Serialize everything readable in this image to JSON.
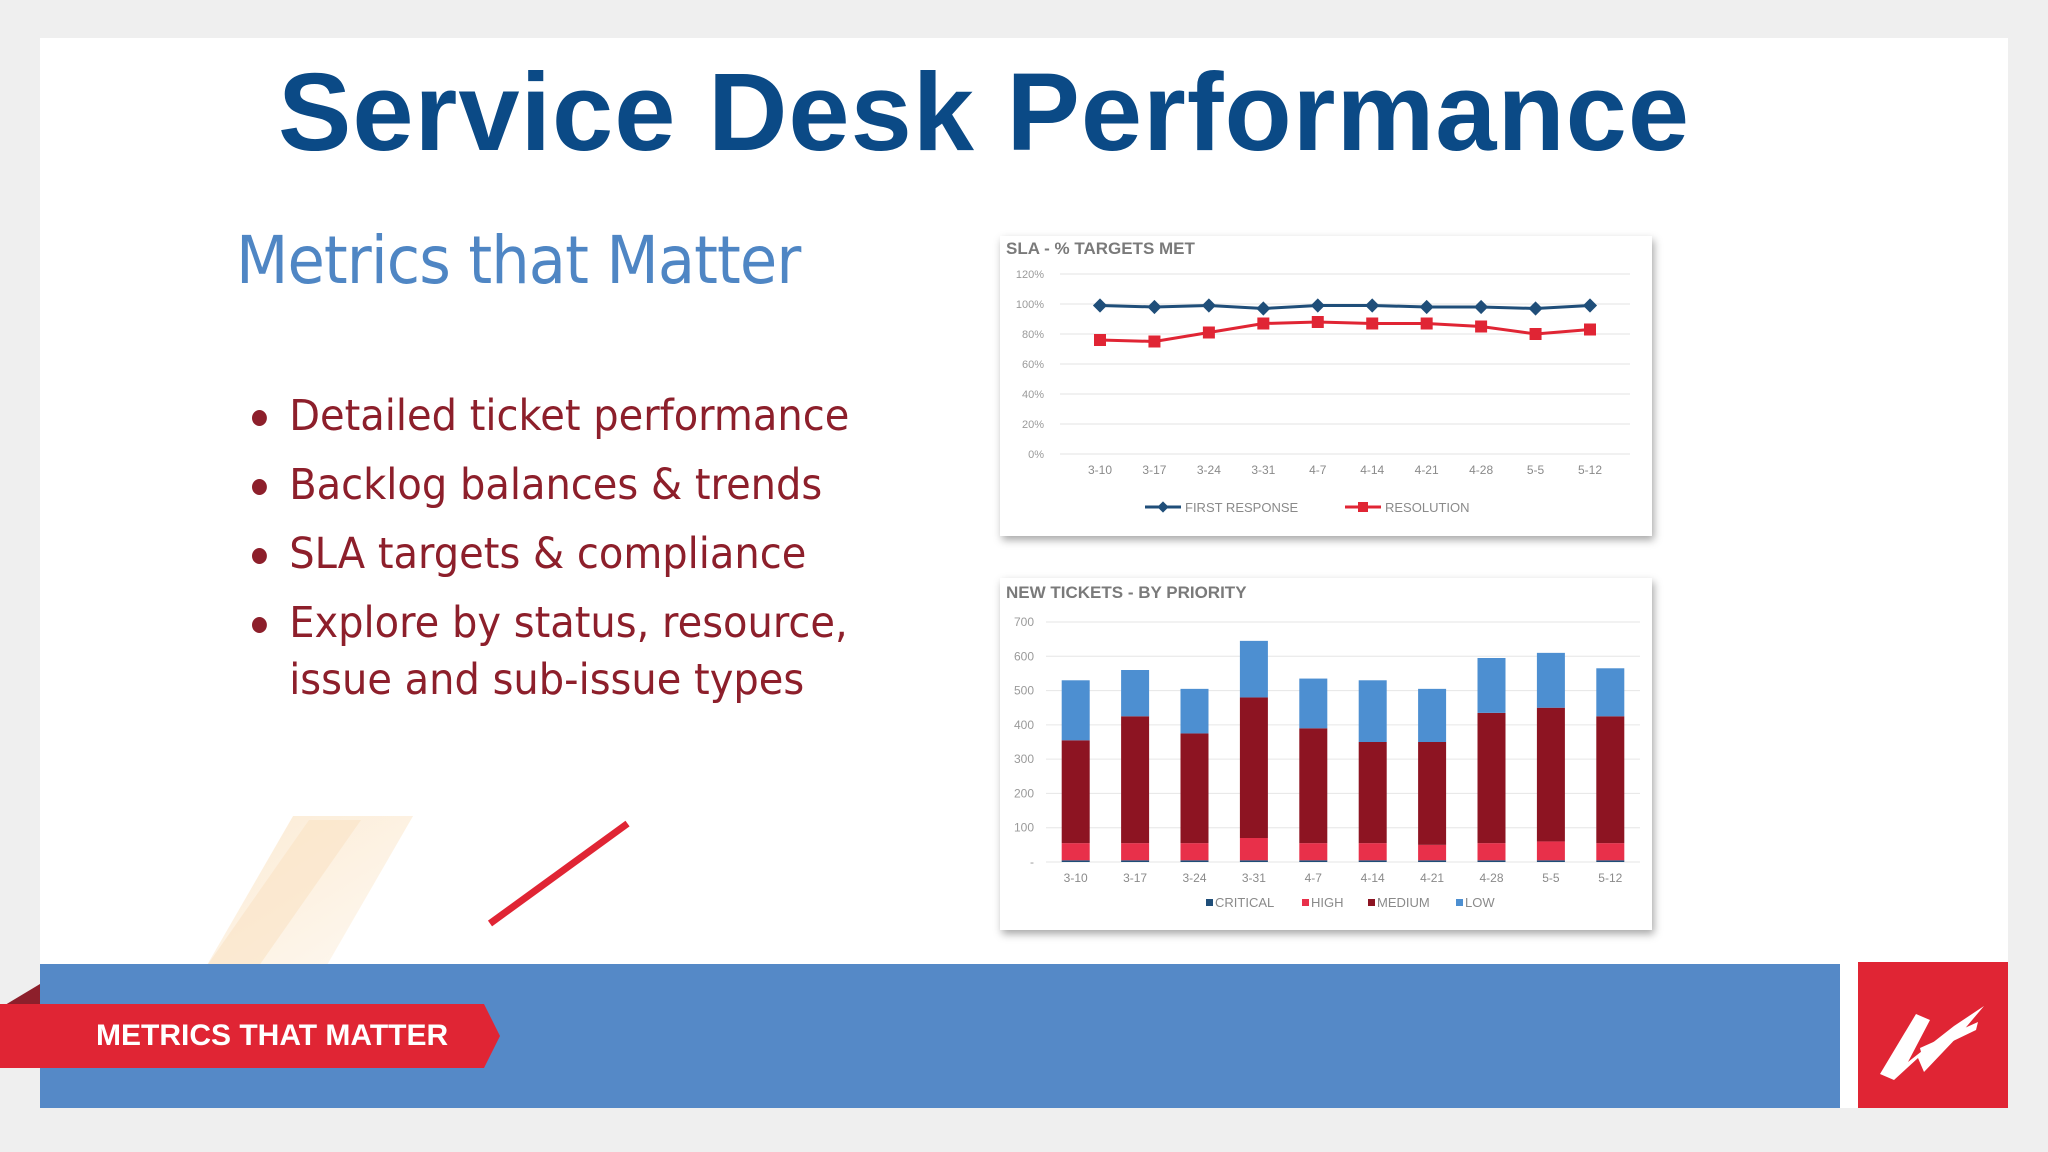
{
  "slide": {
    "title": "Service Desk Performance",
    "subtitle": "Metrics that Matter",
    "bullets": [
      "Detailed ticket performance",
      "Backlog balances & trends",
      "SLA targets & compliance",
      "Explore by status, resource, issue and sub-issue types"
    ]
  },
  "footer": {
    "tag_label": "METRICS THAT MATTER",
    "logo_icon": "company-logo-icon"
  },
  "colors": {
    "title": "#0b4a86",
    "subtitle": "#4f86c4",
    "bullet_text": "#8d1f2b",
    "footer_bar": "#5589c7",
    "accent_red": "#e02534",
    "series_first_response": "#1f4e79",
    "series_resolution": "#e02534",
    "series_critical": "#1f4e79",
    "series_high": "#e8304a",
    "series_medium": "#8d1422",
    "series_low": "#4d8fd1"
  },
  "chart_data": [
    {
      "type": "line",
      "title": "SLA - % TARGETS MET",
      "categories": [
        "3-10",
        "3-17",
        "3-24",
        "3-31",
        "4-7",
        "4-14",
        "4-21",
        "4-28",
        "5-5",
        "5-12"
      ],
      "ylim": [
        0,
        120
      ],
      "yticks": [
        "120%",
        "100%",
        "80%",
        "60%",
        "40%",
        "20%",
        "0%"
      ],
      "grid": true,
      "legend_position": "bottom",
      "series": [
        {
          "name": "FIRST RESPONSE",
          "values": [
            99,
            98,
            99,
            97,
            99,
            99,
            98,
            98,
            97,
            99
          ]
        },
        {
          "name": "RESOLUTION",
          "values": [
            76,
            75,
            81,
            87,
            88,
            87,
            87,
            85,
            80,
            83
          ]
        }
      ]
    },
    {
      "type": "bar",
      "stacked": true,
      "title": "NEW TICKETS - BY PRIORITY",
      "categories": [
        "3-10",
        "3-17",
        "3-24",
        "3-31",
        "4-7",
        "4-14",
        "4-21",
        "4-28",
        "5-5",
        "5-12"
      ],
      "ylim": [
        0,
        700
      ],
      "yticks": [
        "700",
        "600",
        "500",
        "400",
        "300",
        "200",
        "100",
        "-"
      ],
      "grid": true,
      "legend_position": "bottom",
      "series": [
        {
          "name": "CRITICAL",
          "values": [
            5,
            5,
            5,
            5,
            5,
            5,
            5,
            5,
            5,
            5
          ]
        },
        {
          "name": "HIGH",
          "values": [
            50,
            50,
            50,
            65,
            50,
            50,
            45,
            50,
            55,
            50
          ]
        },
        {
          "name": "MEDIUM",
          "values": [
            300,
            370,
            320,
            410,
            335,
            295,
            300,
            380,
            390,
            370
          ]
        },
        {
          "name": "LOW",
          "values": [
            175,
            135,
            130,
            165,
            145,
            180,
            155,
            160,
            160,
            140
          ]
        }
      ]
    }
  ]
}
